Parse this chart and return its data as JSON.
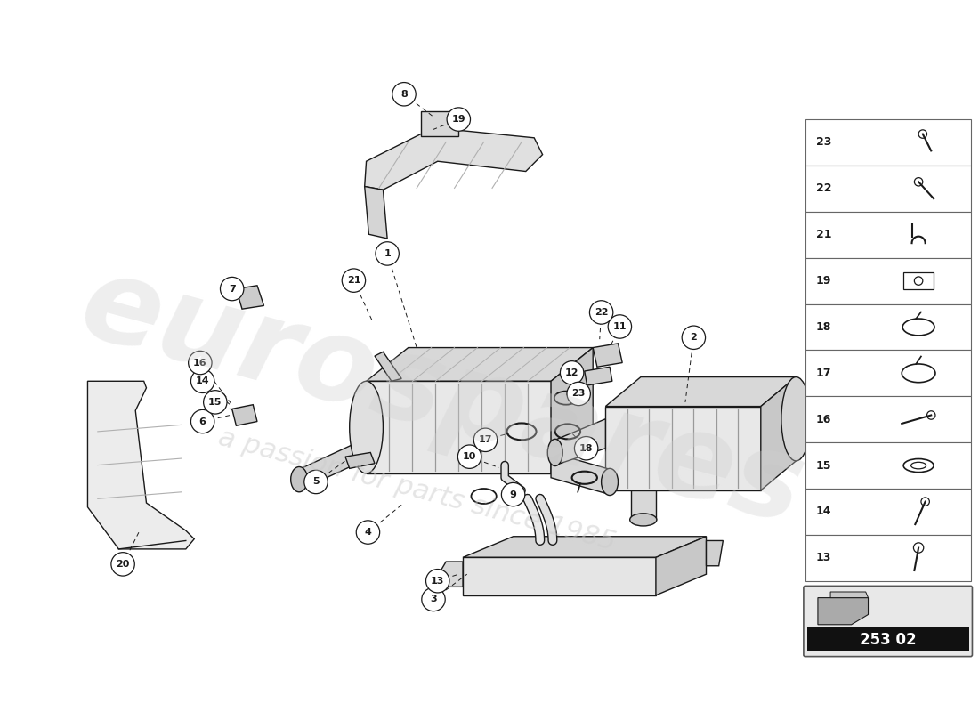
{
  "background_color": "#ffffff",
  "watermark_text": "eurospares",
  "watermark_subtext": "a passion for parts since 1985",
  "part_number": "253 02",
  "fig_width": 11.0,
  "fig_height": 8.0,
  "line_color": "#1a1a1a",
  "sidebar_items": [
    {
      "num": 23
    },
    {
      "num": 22
    },
    {
      "num": 21
    },
    {
      "num": 19
    },
    {
      "num": 18
    },
    {
      "num": 17
    },
    {
      "num": 16
    },
    {
      "num": 15
    },
    {
      "num": 14
    },
    {
      "num": 13
    }
  ]
}
